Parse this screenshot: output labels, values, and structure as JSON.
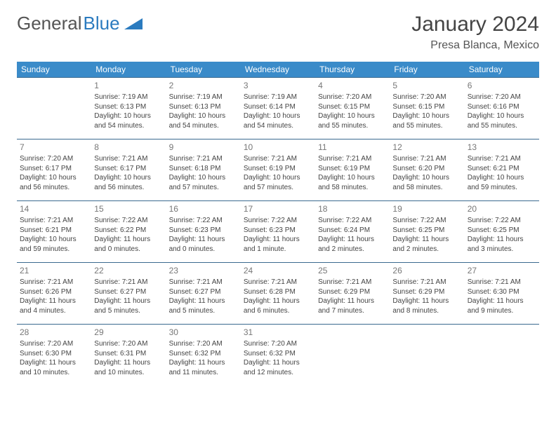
{
  "logo": {
    "text_gray": "General",
    "text_blue": "Blue"
  },
  "title": "January 2024",
  "location": "Presa Blanca, Mexico",
  "colors": {
    "header_bg": "#3a8bc9",
    "header_text": "#ffffff",
    "cell_border": "#3a6a8f",
    "daynum": "#777777",
    "body_text": "#444444",
    "logo_gray": "#555555",
    "logo_blue": "#2b7bbf",
    "background": "#ffffff"
  },
  "weekdays": [
    "Sunday",
    "Monday",
    "Tuesday",
    "Wednesday",
    "Thursday",
    "Friday",
    "Saturday"
  ],
  "weeks": [
    [
      null,
      {
        "n": "1",
        "sr": "7:19 AM",
        "ss": "6:13 PM",
        "dl": "10 hours and 54 minutes."
      },
      {
        "n": "2",
        "sr": "7:19 AM",
        "ss": "6:13 PM",
        "dl": "10 hours and 54 minutes."
      },
      {
        "n": "3",
        "sr": "7:19 AM",
        "ss": "6:14 PM",
        "dl": "10 hours and 54 minutes."
      },
      {
        "n": "4",
        "sr": "7:20 AM",
        "ss": "6:15 PM",
        "dl": "10 hours and 55 minutes."
      },
      {
        "n": "5",
        "sr": "7:20 AM",
        "ss": "6:15 PM",
        "dl": "10 hours and 55 minutes."
      },
      {
        "n": "6",
        "sr": "7:20 AM",
        "ss": "6:16 PM",
        "dl": "10 hours and 55 minutes."
      }
    ],
    [
      {
        "n": "7",
        "sr": "7:20 AM",
        "ss": "6:17 PM",
        "dl": "10 hours and 56 minutes."
      },
      {
        "n": "8",
        "sr": "7:21 AM",
        "ss": "6:17 PM",
        "dl": "10 hours and 56 minutes."
      },
      {
        "n": "9",
        "sr": "7:21 AM",
        "ss": "6:18 PM",
        "dl": "10 hours and 57 minutes."
      },
      {
        "n": "10",
        "sr": "7:21 AM",
        "ss": "6:19 PM",
        "dl": "10 hours and 57 minutes."
      },
      {
        "n": "11",
        "sr": "7:21 AM",
        "ss": "6:19 PM",
        "dl": "10 hours and 58 minutes."
      },
      {
        "n": "12",
        "sr": "7:21 AM",
        "ss": "6:20 PM",
        "dl": "10 hours and 58 minutes."
      },
      {
        "n": "13",
        "sr": "7:21 AM",
        "ss": "6:21 PM",
        "dl": "10 hours and 59 minutes."
      }
    ],
    [
      {
        "n": "14",
        "sr": "7:21 AM",
        "ss": "6:21 PM",
        "dl": "10 hours and 59 minutes."
      },
      {
        "n": "15",
        "sr": "7:22 AM",
        "ss": "6:22 PM",
        "dl": "11 hours and 0 minutes."
      },
      {
        "n": "16",
        "sr": "7:22 AM",
        "ss": "6:23 PM",
        "dl": "11 hours and 0 minutes."
      },
      {
        "n": "17",
        "sr": "7:22 AM",
        "ss": "6:23 PM",
        "dl": "11 hours and 1 minute."
      },
      {
        "n": "18",
        "sr": "7:22 AM",
        "ss": "6:24 PM",
        "dl": "11 hours and 2 minutes."
      },
      {
        "n": "19",
        "sr": "7:22 AM",
        "ss": "6:25 PM",
        "dl": "11 hours and 2 minutes."
      },
      {
        "n": "20",
        "sr": "7:22 AM",
        "ss": "6:25 PM",
        "dl": "11 hours and 3 minutes."
      }
    ],
    [
      {
        "n": "21",
        "sr": "7:21 AM",
        "ss": "6:26 PM",
        "dl": "11 hours and 4 minutes."
      },
      {
        "n": "22",
        "sr": "7:21 AM",
        "ss": "6:27 PM",
        "dl": "11 hours and 5 minutes."
      },
      {
        "n": "23",
        "sr": "7:21 AM",
        "ss": "6:27 PM",
        "dl": "11 hours and 5 minutes."
      },
      {
        "n": "24",
        "sr": "7:21 AM",
        "ss": "6:28 PM",
        "dl": "11 hours and 6 minutes."
      },
      {
        "n": "25",
        "sr": "7:21 AM",
        "ss": "6:29 PM",
        "dl": "11 hours and 7 minutes."
      },
      {
        "n": "26",
        "sr": "7:21 AM",
        "ss": "6:29 PM",
        "dl": "11 hours and 8 minutes."
      },
      {
        "n": "27",
        "sr": "7:21 AM",
        "ss": "6:30 PM",
        "dl": "11 hours and 9 minutes."
      }
    ],
    [
      {
        "n": "28",
        "sr": "7:20 AM",
        "ss": "6:30 PM",
        "dl": "11 hours and 10 minutes."
      },
      {
        "n": "29",
        "sr": "7:20 AM",
        "ss": "6:31 PM",
        "dl": "11 hours and 10 minutes."
      },
      {
        "n": "30",
        "sr": "7:20 AM",
        "ss": "6:32 PM",
        "dl": "11 hours and 11 minutes."
      },
      {
        "n": "31",
        "sr": "7:20 AM",
        "ss": "6:32 PM",
        "dl": "11 hours and 12 minutes."
      },
      null,
      null,
      null
    ]
  ],
  "labels": {
    "sunrise": "Sunrise:",
    "sunset": "Sunset:",
    "daylight": "Daylight:"
  }
}
